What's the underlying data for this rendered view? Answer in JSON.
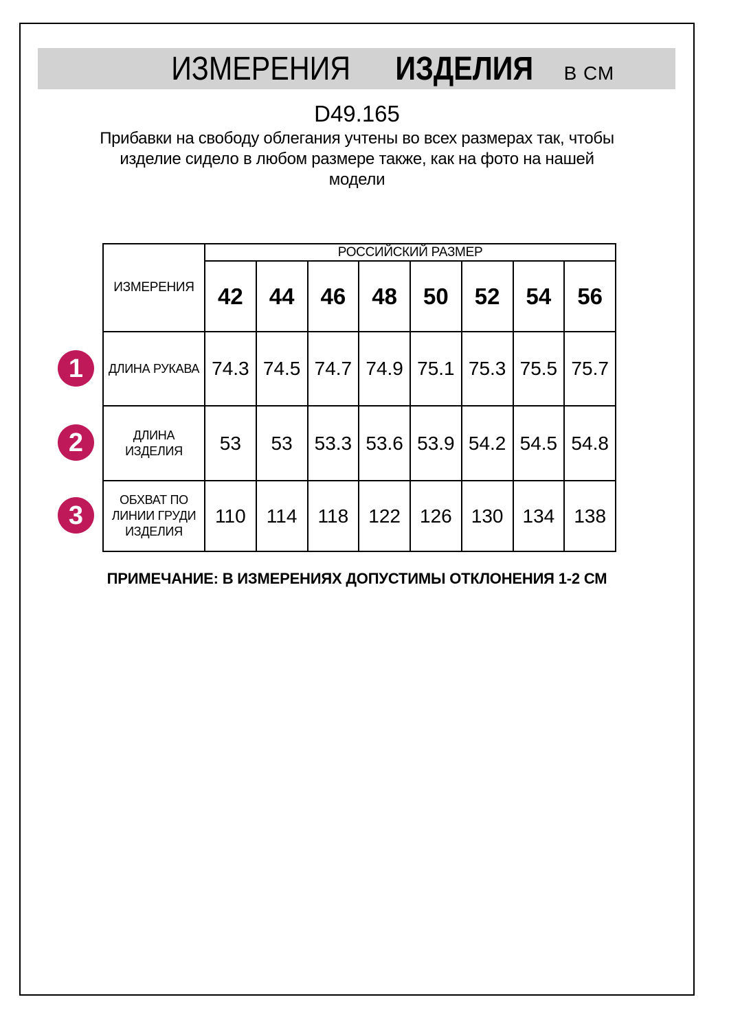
{
  "header": {
    "title_word1": "ИЗМЕРЕНИЯ",
    "title_word2": "ИЗДЕЛИЯ",
    "unit_label": "В СМ",
    "bar_color": "#d2d2d2"
  },
  "product_code": "D49.165",
  "description": "Прибавки на свободу облегания учтены во всех размерах так, чтобы\nизделие сидело в любом размере также, как на фото на нашей\nмодели",
  "note": "ПРИМЕЧАНИЕ: В ИЗМЕРЕНИЯХ ДОПУСТИМЫ ОТКЛОНЕНИЯ 1-2 СМ",
  "accent_color": "#c0195a",
  "chart_data": {
    "type": "table",
    "measurements_header": "ИЗМЕРЕНИЯ",
    "size_group_header": "РОССИЙСКИЙ РАЗМЕР",
    "sizes": [
      "42",
      "44",
      "46",
      "48",
      "50",
      "52",
      "54",
      "56"
    ],
    "rows": [
      {
        "num": "1",
        "label": "ДЛИНА РУКАВА",
        "values": [
          "74.3",
          "74.5",
          "74.7",
          "74.9",
          "75.1",
          "75.3",
          "75.5",
          "75.7"
        ]
      },
      {
        "num": "2",
        "label": "ДЛИНА\nИЗДЕЛИЯ",
        "values": [
          "53",
          "53",
          "53.3",
          "53.6",
          "53.9",
          "54.2",
          "54.5",
          "54.8"
        ]
      },
      {
        "num": "3",
        "label": "ОБХВАТ ПО\nЛИНИИ ГРУДИ\nИЗДЕЛИЯ",
        "values": [
          "110",
          "114",
          "118",
          "122",
          "126",
          "130",
          "134",
          "138"
        ]
      }
    ]
  }
}
